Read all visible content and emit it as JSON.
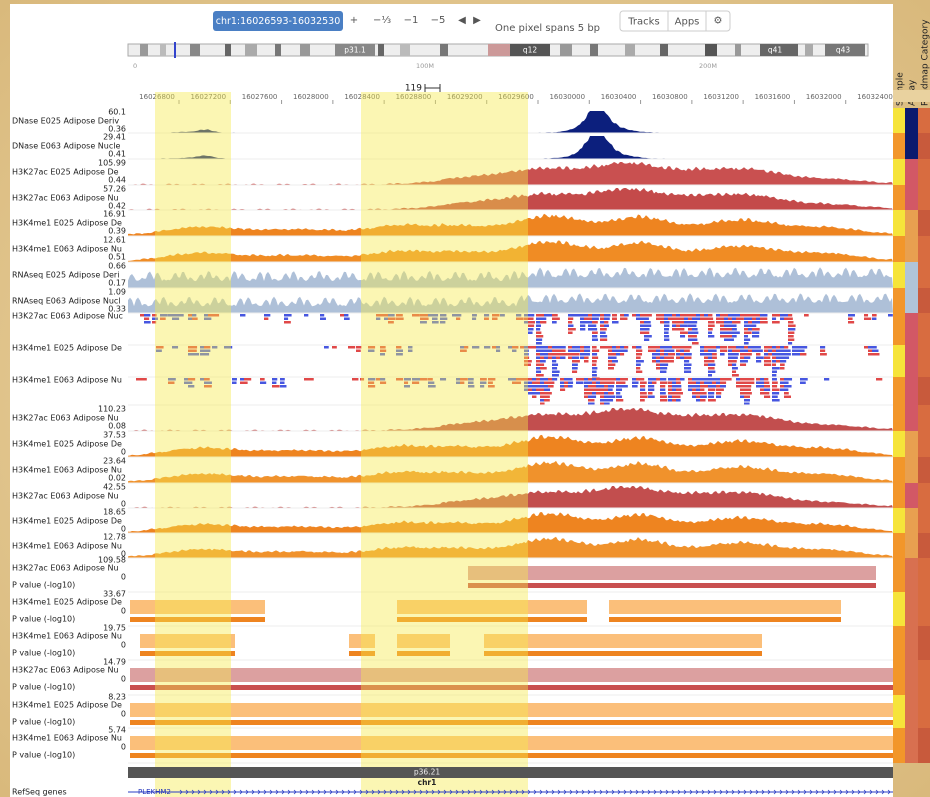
{
  "toolbar": {
    "locus": "chr1:16026593-16032530",
    "buttons": [
      "+",
      "−⅓",
      "−1",
      "−5",
      "◀",
      "▶"
    ],
    "pixel_span": "One pixel spans 5 bp",
    "menu": [
      "Tracks",
      "Apps",
      "⚙"
    ]
  },
  "ideogram": {
    "bands": [
      "p31.1",
      "q12",
      "q41",
      "q43"
    ],
    "scale": [
      "0",
      "100M",
      "200M"
    ]
  },
  "ruler": {
    "scale_bar": "119",
    "positions": [
      16026800,
      16027200,
      16027600,
      16028000,
      16028400,
      16028800,
      16029200,
      16029600,
      16030000,
      16030400,
      16030800,
      16031200,
      16031600,
      16032000,
      16032400
    ]
  },
  "column_headers": [
    "Sample",
    "Assay",
    "Roadmap Category"
  ],
  "tracks": [
    {
      "label": "DNase E025 Adipose Deriv",
      "max": 60.1,
      "min": 0.36
    },
    {
      "label": "DNase E063 Adipose Nucle",
      "max": 29.41,
      "min": 0.41
    },
    {
      "label": "H3K27ac E025 Adipose De",
      "max": 105.99,
      "min": 0.44
    },
    {
      "label": "H3K27ac E063 Adipose Nu",
      "max": 57.26,
      "min": 0.42
    },
    {
      "label": "H3K4me1 E025 Adipose De",
      "max": 16.91,
      "min": 0.39
    },
    {
      "label": "H3K4me1 E063 Adipose Nu",
      "max": 12.61,
      "min": 0.51
    },
    {
      "label": "RNAseq E025 Adipose Deri",
      "max": 0.66,
      "min": 0.17
    },
    {
      "label": "RNAseq E063 Adipose Nucl",
      "max": 1.09,
      "min": 0.33
    },
    {
      "label": "H3K27ac E063 Adipose Nuc"
    },
    {
      "label": "H3K4me1 E025 Adipose De"
    },
    {
      "label": "H3K4me1 E063 Adipose Nu"
    },
    {
      "label": "H3K27ac E063 Adipose Nu",
      "max": 110.23,
      "min": 0.08
    },
    {
      "label": "H3K4me1 E025 Adipose De",
      "max": 37.53,
      "min": 0
    },
    {
      "label": "H3K4me1 E063 Adipose Nu",
      "max": 23.64,
      "min": 0.02
    },
    {
      "label": "H3K27ac E063 Adipose Nu",
      "max": 42.55,
      "min": 0
    },
    {
      "label": "H3K4me1 E025 Adipose De",
      "max": 18.65,
      "min": 0
    },
    {
      "label": "H3K4me1 E063 Adipose Nu",
      "max": 12.78,
      "min": 0
    },
    {
      "label": "H3K27ac E063 Adipose Nu",
      "max": 109.58,
      "min": 0,
      "sublabel": "P value (-log10)"
    },
    {
      "label": "H3K4me1 E025 Adipose De",
      "max": 33.67,
      "min": 0,
      "sublabel": "P value (-log10)"
    },
    {
      "label": "H3K4me1 E063 Adipose Nu",
      "max": 19.75,
      "min": 0,
      "sublabel": "P value (-log10)"
    },
    {
      "label": "H3K27ac E063 Adipose Nu",
      "max": 14.79,
      "min": 0,
      "sublabel": "P value (-log10)"
    },
    {
      "label": "H3K4me1 E025 Adipose De",
      "max": 8.23,
      "min": 0,
      "sublabel": "P value (-log10)"
    },
    {
      "label": "H3K4me1 E063 Adipose Nu",
      "max": 5.74,
      "min": 0,
      "sublabel": "P value (-log10)"
    }
  ],
  "chromosome": {
    "band": "p36.21",
    "name": "chr1"
  },
  "refseq": {
    "label": "RefSeq genes",
    "gene": "PLEKHM2"
  }
}
